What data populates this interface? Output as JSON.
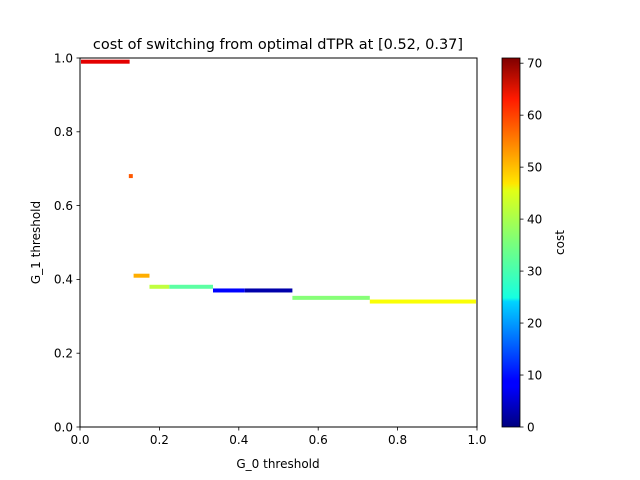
{
  "chart_data": {
    "type": "heatmap",
    "title": "cost of switching from optimal dTPR at [0.52, 0.37]",
    "xlabel": "G_0 threshold",
    "ylabel": "G_1 threshold",
    "xlim": [
      0.0,
      1.0
    ],
    "ylim": [
      0.0,
      1.0
    ],
    "xticks": [
      "0.0",
      "0.2",
      "0.4",
      "0.6",
      "0.8",
      "1.0"
    ],
    "yticks": [
      "0.0",
      "0.2",
      "0.4",
      "0.6",
      "0.8",
      "1.0"
    ],
    "grid": false,
    "colorbar": {
      "label": "cost",
      "colormap": "jet",
      "range": [
        0,
        71
      ],
      "ticks": [
        "0",
        "10",
        "20",
        "30",
        "40",
        "50",
        "60",
        "70"
      ]
    },
    "segments": [
      {
        "x0": 0.0,
        "x1": 0.125,
        "y": 0.99,
        "cost": 64
      },
      {
        "x0": 0.123,
        "x1": 0.133,
        "y": 0.68,
        "cost": 56
      },
      {
        "x0": 0.135,
        "x1": 0.175,
        "y": 0.41,
        "cost": 50
      },
      {
        "x0": 0.175,
        "x1": 0.225,
        "y": 0.38,
        "cost": 40
      },
      {
        "x0": 0.225,
        "x1": 0.335,
        "y": 0.38,
        "cost": 33
      },
      {
        "x0": 0.335,
        "x1": 0.415,
        "y": 0.37,
        "cost": 9
      },
      {
        "x0": 0.415,
        "x1": 0.535,
        "y": 0.37,
        "cost": 3
      },
      {
        "x0": 0.535,
        "x1": 0.73,
        "y": 0.35,
        "cost": 36
      },
      {
        "x0": 0.73,
        "x1": 1.0,
        "y": 0.34,
        "cost": 44
      }
    ]
  }
}
